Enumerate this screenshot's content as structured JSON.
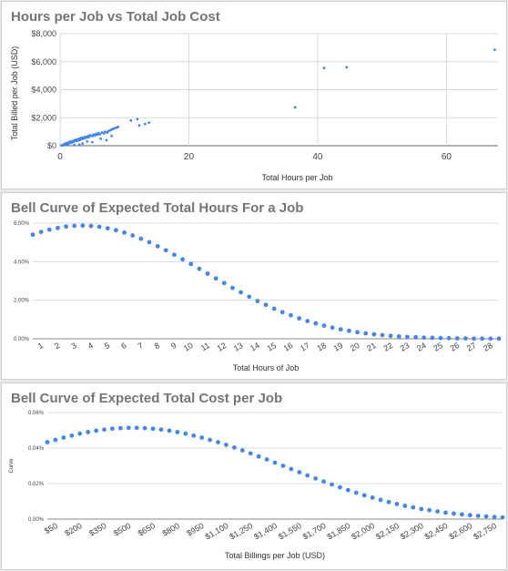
{
  "charts": [
    {
      "title": "Hours per Job vs Total Job Cost"
    },
    {
      "title": "Bell Curve of Expected Total Hours For a Job"
    },
    {
      "title": "Bell Curve of Expected Total Cost per Job"
    }
  ],
  "chart_data": [
    {
      "type": "scatter",
      "title": "Hours per Job vs Total Job Cost",
      "xlabel": "Total Hours per Job",
      "ylabel": "Total Billed per Job (USD)",
      "xlim": [
        0,
        68
      ],
      "ylim": [
        0,
        8000
      ],
      "xticks": [
        0,
        20,
        40,
        60
      ],
      "xtick_labels": [
        "0",
        "20",
        "40",
        "60"
      ],
      "yticks": [
        0,
        2000,
        4000,
        6000,
        8000
      ],
      "ytick_labels": [
        "$0",
        "$2,000",
        "$4,000",
        "$6,000",
        "$8,000"
      ],
      "grid": true,
      "color": "#4285f4",
      "points": [
        [
          0.2,
          20
        ],
        [
          0.4,
          60
        ],
        [
          0.5,
          30
        ],
        [
          0.7,
          110
        ],
        [
          0.8,
          150
        ],
        [
          1.0,
          120
        ],
        [
          1.1,
          200
        ],
        [
          1.2,
          90
        ],
        [
          1.4,
          250
        ],
        [
          1.5,
          180
        ],
        [
          1.6,
          300
        ],
        [
          1.8,
          220
        ],
        [
          2.0,
          350
        ],
        [
          2.1,
          280
        ],
        [
          2.3,
          400
        ],
        [
          2.5,
          330
        ],
        [
          2.6,
          450
        ],
        [
          2.8,
          380
        ],
        [
          3.0,
          500
        ],
        [
          3.1,
          420
        ],
        [
          3.3,
          560
        ],
        [
          3.5,
          480
        ],
        [
          3.6,
          600
        ],
        [
          3.8,
          530
        ],
        [
          4.0,
          650
        ],
        [
          4.2,
          580
        ],
        [
          4.4,
          700
        ],
        [
          4.5,
          620
        ],
        [
          4.7,
          750
        ],
        [
          5.0,
          680
        ],
        [
          5.2,
          800
        ],
        [
          5.4,
          720
        ],
        [
          5.6,
          850
        ],
        [
          5.8,
          780
        ],
        [
          6.0,
          900
        ],
        [
          6.2,
          820
        ],
        [
          6.5,
          950
        ],
        [
          6.8,
          880
        ],
        [
          7.0,
          1000
        ],
        [
          7.3,
          930
        ],
        [
          7.5,
          1050
        ],
        [
          7.8,
          1100
        ],
        [
          8.0,
          1150
        ],
        [
          8.2,
          1200
        ],
        [
          8.5,
          1250
        ],
        [
          8.8,
          1300
        ],
        [
          9.0,
          1350
        ],
        [
          3.5,
          150
        ],
        [
          4.2,
          300
        ],
        [
          5.0,
          250
        ],
        [
          6.3,
          500
        ],
        [
          7.2,
          400
        ],
        [
          8.0,
          700
        ],
        [
          3.0,
          80
        ],
        [
          2.2,
          50
        ],
        [
          11.0,
          1800
        ],
        [
          12.0,
          1900
        ],
        [
          12.3,
          1450
        ],
        [
          13.2,
          1550
        ],
        [
          13.8,
          1650
        ],
        [
          36.5,
          2750
        ],
        [
          41.0,
          5550
        ],
        [
          44.5,
          5600
        ],
        [
          67.5,
          6850
        ]
      ]
    },
    {
      "type": "scatter",
      "title": "Bell Curve of Expected Total Hours For a Job",
      "xlabel": "Total Hours of Job",
      "ylabel": "",
      "ylim": [
        0,
        6
      ],
      "yticks": [
        0,
        2,
        4,
        6
      ],
      "ytick_labels": [
        "0.00%",
        "2.00%",
        "4.00%",
        "6.00%"
      ],
      "categories": [
        "1",
        "2",
        "3",
        "4",
        "5",
        "6",
        "7",
        "8",
        "9",
        "10",
        "11",
        "12",
        "13",
        "14",
        "15",
        "16",
        "17",
        "18",
        "19",
        "20",
        "21",
        "22",
        "23",
        "24",
        "25",
        "26",
        "27",
        "28"
      ],
      "grid": true,
      "color": "#4285f4",
      "x": [
        0.5,
        1,
        1.5,
        2,
        2.5,
        3,
        3.5,
        4,
        4.5,
        5,
        5.5,
        6,
        6.5,
        7,
        7.5,
        8,
        8.5,
        9,
        9.5,
        10,
        10.5,
        11,
        11.5,
        12,
        12.5,
        13,
        13.5,
        14,
        14.5,
        15,
        15.5,
        16,
        16.5,
        17,
        17.5,
        18,
        18.5,
        19,
        19.5,
        20,
        20.5,
        21,
        21.5,
        22,
        22.5,
        23,
        23.5,
        24,
        24.5,
        25,
        25.5,
        26,
        26.5,
        27,
        27.5,
        28,
        28.5
      ],
      "values": [
        5.4,
        5.54,
        5.66,
        5.75,
        5.82,
        5.86,
        5.87,
        5.85,
        5.81,
        5.73,
        5.63,
        5.51,
        5.36,
        5.19,
        5.01,
        4.8,
        4.59,
        4.36,
        4.12,
        3.88,
        3.63,
        3.38,
        3.13,
        2.89,
        2.64,
        2.41,
        2.18,
        1.96,
        1.76,
        1.56,
        1.38,
        1.22,
        1.06,
        0.92,
        0.8,
        0.68,
        0.58,
        0.49,
        0.41,
        0.34,
        0.28,
        0.23,
        0.19,
        0.15,
        0.12,
        0.1,
        0.08,
        0.06,
        0.05,
        0.04,
        0.03,
        0.02,
        0.02,
        0.01,
        0.01,
        0.01,
        0.01
      ]
    },
    {
      "type": "scatter",
      "title": "Bell Curve of Expected Total Cost per Job",
      "xlabel": "Total Billings per Job (USD)",
      "ylabel": "Curve",
      "ylim": [
        0,
        0.06
      ],
      "yticks": [
        0,
        0.02,
        0.04,
        0.06
      ],
      "ytick_labels": [
        "0.00%",
        "0.02%",
        "0.04%",
        "0.06%"
      ],
      "categories": [
        "$50",
        "$200",
        "$350",
        "$500",
        "$650",
        "$800",
        "$950",
        "$1,100",
        "$1,250",
        "$1,400",
        "$1,550",
        "$1,700",
        "$1,850",
        "$2,000",
        "$2,150",
        "$2,300",
        "$2,450",
        "$2,600",
        "$2,750"
      ],
      "grid": true,
      "color": "#4285f4",
      "x": [
        0,
        50,
        100,
        150,
        200,
        250,
        300,
        350,
        400,
        450,
        500,
        550,
        600,
        650,
        700,
        750,
        800,
        850,
        900,
        950,
        1000,
        1050,
        1100,
        1150,
        1200,
        1250,
        1300,
        1350,
        1400,
        1450,
        1500,
        1550,
        1600,
        1650,
        1700,
        1750,
        1800,
        1850,
        1900,
        1950,
        2000,
        2050,
        2100,
        2150,
        2200,
        2250,
        2300,
        2350,
        2400,
        2450,
        2500,
        2550,
        2600,
        2650,
        2700,
        2750,
        2800
      ],
      "values": [
        0.0433,
        0.0446,
        0.0459,
        0.047,
        0.0481,
        0.049,
        0.0498,
        0.0504,
        0.0509,
        0.0512,
        0.0514,
        0.0514,
        0.0512,
        0.0509,
        0.0504,
        0.0498,
        0.049,
        0.0481,
        0.047,
        0.0459,
        0.0446,
        0.0433,
        0.0418,
        0.0403,
        0.0387,
        0.037,
        0.0353,
        0.0336,
        0.0318,
        0.03,
        0.0282,
        0.0264,
        0.0246,
        0.0229,
        0.0212,
        0.0195,
        0.0179,
        0.0163,
        0.0148,
        0.0134,
        0.0121,
        0.0108,
        0.0096,
        0.0085,
        0.0075,
        0.0066,
        0.0057,
        0.005,
        0.0043,
        0.0036,
        0.0031,
        0.0026,
        0.0022,
        0.0018,
        0.0015,
        0.0012,
        0.001
      ]
    }
  ]
}
